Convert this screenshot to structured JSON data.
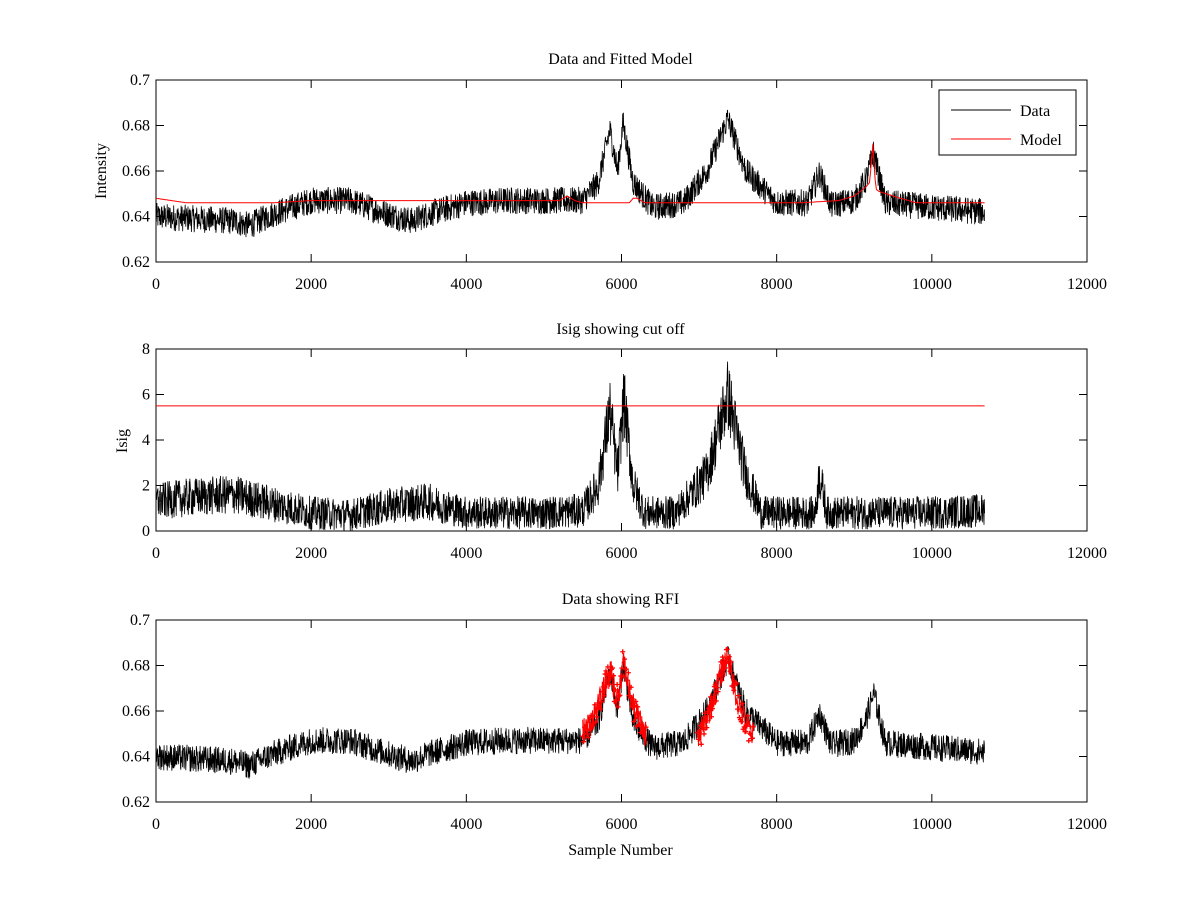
{
  "chart_data": [
    {
      "type": "line",
      "title": "Data and Fitted Model",
      "xlabel": "",
      "ylabel": "Intensity",
      "xlim": [
        0,
        12000
      ],
      "ylim": [
        0.62,
        0.7
      ],
      "xticks": [
        "0",
        "2000",
        "4000",
        "6000",
        "8000",
        "10000",
        "12000"
      ],
      "yticks": [
        "0.62",
        "0.64",
        "0.66",
        "0.68",
        "0.7"
      ],
      "grid": false,
      "legend": {
        "position": "top-right",
        "entries": [
          "Data",
          "Model"
        ]
      },
      "series": [
        {
          "name": "Data",
          "color": "#000000",
          "noise_amplitude": 0.012,
          "x": [
            0,
            500,
            1000,
            1200,
            1500,
            2000,
            2500,
            3000,
            3300,
            3500,
            4000,
            4500,
            5000,
            5500,
            5700,
            5850,
            5950,
            6020,
            6150,
            6400,
            6800,
            7100,
            7370,
            7600,
            8000,
            8400,
            8550,
            8700,
            9000,
            9150,
            9250,
            9400,
            10000,
            10680
          ],
          "y": [
            0.64,
            0.639,
            0.638,
            0.636,
            0.641,
            0.647,
            0.647,
            0.641,
            0.638,
            0.641,
            0.646,
            0.647,
            0.647,
            0.647,
            0.655,
            0.678,
            0.66,
            0.681,
            0.655,
            0.644,
            0.646,
            0.66,
            0.683,
            0.66,
            0.646,
            0.646,
            0.659,
            0.645,
            0.647,
            0.656,
            0.668,
            0.646,
            0.644,
            0.642
          ]
        },
        {
          "name": "Model",
          "color": "#ff0000",
          "x": [
            0,
            400,
            1500,
            2000,
            5000,
            5200,
            5300,
            5400,
            5500,
            6100,
            6150,
            6200,
            6300,
            6500,
            8300,
            8800,
            9000,
            9150,
            9200,
            9240,
            9260,
            9280,
            9320,
            9500,
            9800,
            10680
          ],
          "y": [
            0.648,
            0.646,
            0.646,
            0.647,
            0.647,
            0.647,
            0.649,
            0.647,
            0.646,
            0.646,
            0.648,
            0.648,
            0.646,
            0.646,
            0.646,
            0.647,
            0.649,
            0.653,
            0.655,
            0.672,
            0.66,
            0.652,
            0.651,
            0.649,
            0.646,
            0.646
          ]
        }
      ]
    },
    {
      "type": "line",
      "title": "Isig showing cut off",
      "xlabel": "",
      "ylabel": "Isig",
      "xlim": [
        0,
        12000
      ],
      "ylim": [
        0,
        8
      ],
      "xticks": [
        "0",
        "2000",
        "4000",
        "6000",
        "8000",
        "10000",
        "12000"
      ],
      "yticks": [
        "0",
        "2",
        "4",
        "6",
        "8"
      ],
      "grid": false,
      "cutoff": 5.5,
      "cutoff_x": [
        0,
        10680
      ],
      "cutoff_color": "#ff0000",
      "series": [
        {
          "color": "#000000",
          "noise_amplitude": 1.0,
          "x": [
            0,
            500,
            1000,
            1500,
            2000,
            2500,
            3000,
            3500,
            4000,
            5000,
            5500,
            5700,
            5850,
            5950,
            6030,
            6150,
            6300,
            6700,
            7100,
            7370,
            7600,
            7800,
            8000,
            8500,
            8550,
            8650,
            9000,
            10000,
            10680
          ],
          "y": [
            1.3,
            1.5,
            1.6,
            1.2,
            0.8,
            0.7,
            1.1,
            1.3,
            0.8,
            0.8,
            0.9,
            2.0,
            5.3,
            2.5,
            5.8,
            2.0,
            0.8,
            0.8,
            2.5,
            6.0,
            2.5,
            0.8,
            0.8,
            0.8,
            2.5,
            0.8,
            0.8,
            0.8,
            0.9
          ]
        }
      ]
    },
    {
      "type": "line",
      "title": "Data showing RFI",
      "xlabel": "Sample Number",
      "ylabel": "",
      "xlim": [
        0,
        12000
      ],
      "ylim": [
        0.62,
        0.7
      ],
      "xticks": [
        "0",
        "2000",
        "4000",
        "6000",
        "8000",
        "10000",
        "12000"
      ],
      "yticks": [
        "0.62",
        "0.64",
        "0.66",
        "0.68",
        "0.7"
      ],
      "grid": false,
      "series": [
        {
          "color": "#000000",
          "noise_amplitude": 0.012,
          "x": [
            0,
            500,
            1000,
            1200,
            1500,
            2000,
            2500,
            3000,
            3300,
            3500,
            4000,
            4500,
            5000,
            5500,
            5700,
            5850,
            5950,
            6020,
            6150,
            6400,
            6800,
            7100,
            7370,
            7600,
            8000,
            8400,
            8550,
            8700,
            9000,
            9150,
            9250,
            9400,
            10000,
            10680
          ],
          "y": [
            0.64,
            0.639,
            0.638,
            0.636,
            0.641,
            0.647,
            0.647,
            0.641,
            0.638,
            0.641,
            0.646,
            0.647,
            0.647,
            0.647,
            0.655,
            0.678,
            0.66,
            0.681,
            0.655,
            0.644,
            0.646,
            0.66,
            0.683,
            0.66,
            0.646,
            0.646,
            0.659,
            0.645,
            0.647,
            0.656,
            0.668,
            0.646,
            0.644,
            0.642
          ]
        },
        {
          "color": "#ff0000",
          "marker": "+",
          "noise_amplitude": 0.012,
          "segments": [
            {
              "x": [
                5500,
                5600,
                5700,
                5800,
                5870,
                5930,
                5980,
                6020,
                6080,
                6150,
                6250,
                6320
              ],
              "y": [
                0.651,
                0.655,
                0.662,
                0.672,
                0.678,
                0.664,
                0.671,
                0.682,
                0.672,
                0.662,
                0.654,
                0.649
              ]
            },
            {
              "x": [
                6980,
                7050,
                7150,
                7250,
                7320,
                7370,
                7420,
                7500,
                7600,
                7700
              ],
              "y": [
                0.647,
                0.653,
                0.662,
                0.673,
                0.68,
                0.684,
                0.676,
                0.664,
                0.655,
                0.649
              ]
            }
          ]
        }
      ]
    }
  ]
}
